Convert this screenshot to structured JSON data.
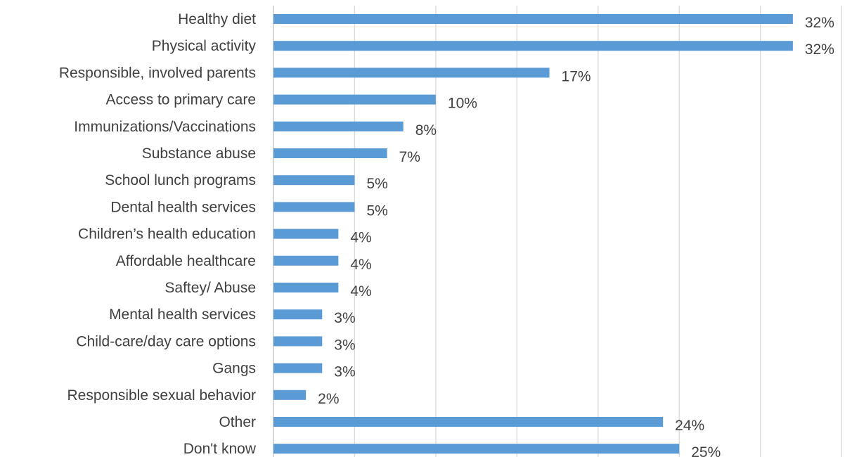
{
  "chart_data": {
    "type": "bar",
    "orientation": "horizontal",
    "categories": [
      "Healthy diet",
      "Physical activity",
      "Responsible, involved parents",
      "Access to primary care",
      "Immunizations/Vaccinations",
      "Substance abuse",
      "School lunch programs",
      "Dental health services",
      "Children’s health education",
      "Affordable healthcare",
      "Saftey/ Abuse",
      "Mental health services",
      "Child-care/day care options",
      "Gangs",
      "Responsible sexual behavior",
      "Other",
      "Don't know"
    ],
    "values": [
      32,
      32,
      17,
      10,
      8,
      7,
      5,
      5,
      4,
      4,
      4,
      3,
      3,
      3,
      2,
      24,
      25
    ],
    "labels": [
      "32%",
      "32%",
      "17%",
      "10%",
      "8%",
      "7%",
      "5%",
      "5%",
      "4%",
      "4%",
      "4%",
      "3%",
      "3%",
      "3%",
      "2%",
      "24%",
      "25%"
    ],
    "bar_color": "#5b9bd5",
    "xlim": [
      0,
      35
    ],
    "grid": true,
    "title": "",
    "xlabel": "",
    "ylabel": ""
  }
}
